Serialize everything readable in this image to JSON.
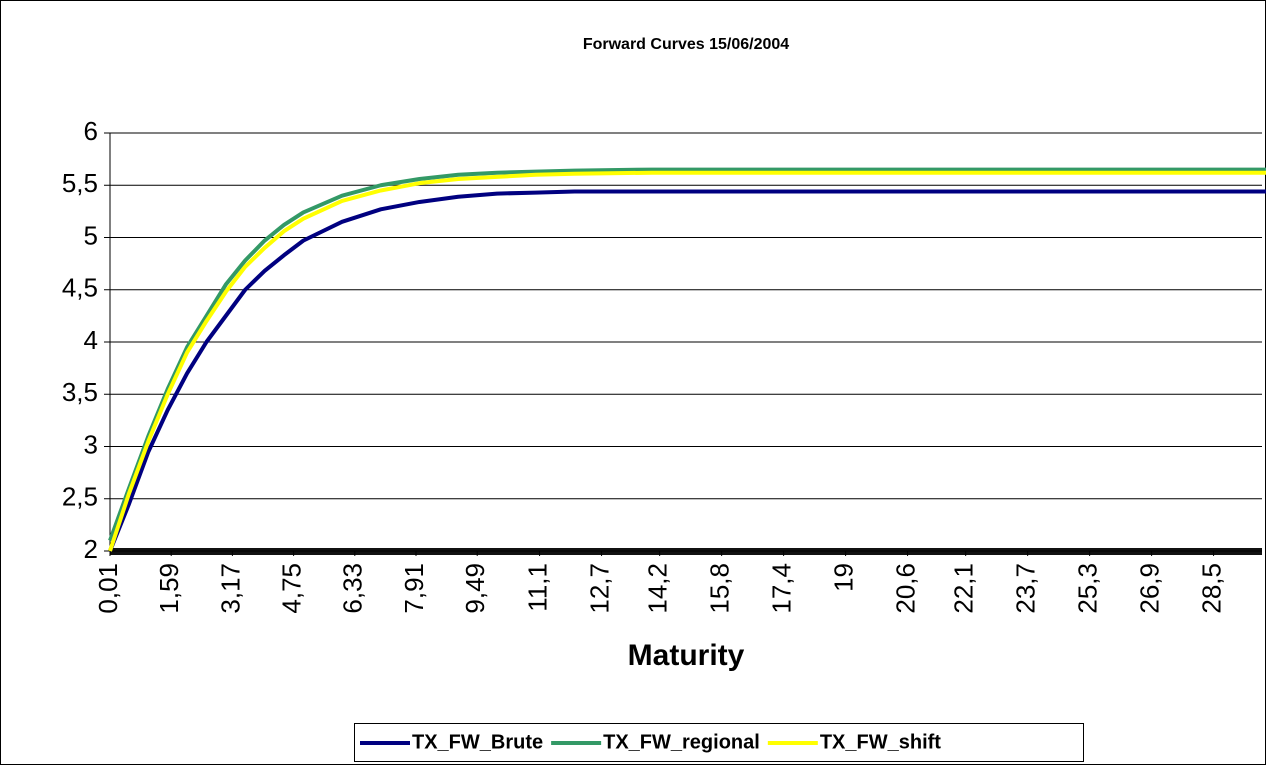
{
  "chart_data": {
    "type": "line",
    "title": "Forward Curves 15/06/2004",
    "x_label": "Maturity",
    "x": [
      0.01,
      0.5,
      1,
      1.5,
      2,
      2.5,
      3,
      3.5,
      4,
      4.5,
      5,
      6,
      7,
      8,
      9,
      10,
      11,
      12,
      14,
      16,
      18,
      20,
      22,
      24,
      26,
      28,
      30
    ],
    "series": [
      {
        "name": "TX_FW_Brute",
        "color": "#000080",
        "values": [
          2.0,
          2.45,
          2.95,
          3.35,
          3.7,
          4.0,
          4.25,
          4.5,
          4.68,
          4.83,
          4.97,
          5.15,
          5.27,
          5.34,
          5.39,
          5.42,
          5.43,
          5.44,
          5.44,
          5.44,
          5.44,
          5.44,
          5.44,
          5.44,
          5.44,
          5.44,
          5.44
        ]
      },
      {
        "name": "TX_FW_regional",
        "color": "#339966",
        "values": [
          2.1,
          2.6,
          3.1,
          3.55,
          3.95,
          4.25,
          4.55,
          4.78,
          4.97,
          5.12,
          5.24,
          5.4,
          5.5,
          5.56,
          5.6,
          5.62,
          5.63,
          5.64,
          5.65,
          5.65,
          5.65,
          5.65,
          5.65,
          5.65,
          5.65,
          5.65,
          5.65
        ]
      },
      {
        "name": "TX_FW_shift",
        "color": "#ffff00",
        "values": [
          2.0,
          2.55,
          3.05,
          3.5,
          3.9,
          4.2,
          4.48,
          4.72,
          4.9,
          5.06,
          5.18,
          5.35,
          5.45,
          5.52,
          5.56,
          5.58,
          5.6,
          5.61,
          5.62,
          5.62,
          5.62,
          5.62,
          5.62,
          5.62,
          5.62,
          5.62,
          5.62
        ]
      }
    ],
    "xlim": [
      0.01,
      29.75
    ],
    "xticks": [
      {
        "value": 0.01,
        "label": "0,01"
      },
      {
        "value": 1.59,
        "label": "1,59"
      },
      {
        "value": 3.17,
        "label": "3,17"
      },
      {
        "value": 4.75,
        "label": "4,75"
      },
      {
        "value": 6.33,
        "label": "6,33"
      },
      {
        "value": 7.91,
        "label": "7,91"
      },
      {
        "value": 9.49,
        "label": "9,49"
      },
      {
        "value": 11.1,
        "label": "11,1"
      },
      {
        "value": 12.7,
        "label": "12,7"
      },
      {
        "value": 14.2,
        "label": "14,2"
      },
      {
        "value": 15.8,
        "label": "15,8"
      },
      {
        "value": 17.4,
        "label": "17,4"
      },
      19,
      {
        "value": 20.6,
        "label": "20,6"
      },
      {
        "value": 22.1,
        "label": "22,1"
      },
      {
        "value": 23.7,
        "label": "23,7"
      },
      {
        "value": 25.3,
        "label": "25,3"
      },
      {
        "value": 26.9,
        "label": "26,9"
      },
      {
        "value": 28.5,
        "label": "28,5"
      }
    ],
    "ylim": [
      2,
      6
    ],
    "yticks": [
      2,
      {
        "value": 2.5,
        "label": "2,5"
      },
      3,
      {
        "value": 3.5,
        "label": "3,5"
      },
      4,
      {
        "value": 4.5,
        "label": "4,5"
      },
      5,
      {
        "value": 5.5,
        "label": "5,5"
      },
      6
    ],
    "grid": true,
    "legend": "bottom"
  }
}
